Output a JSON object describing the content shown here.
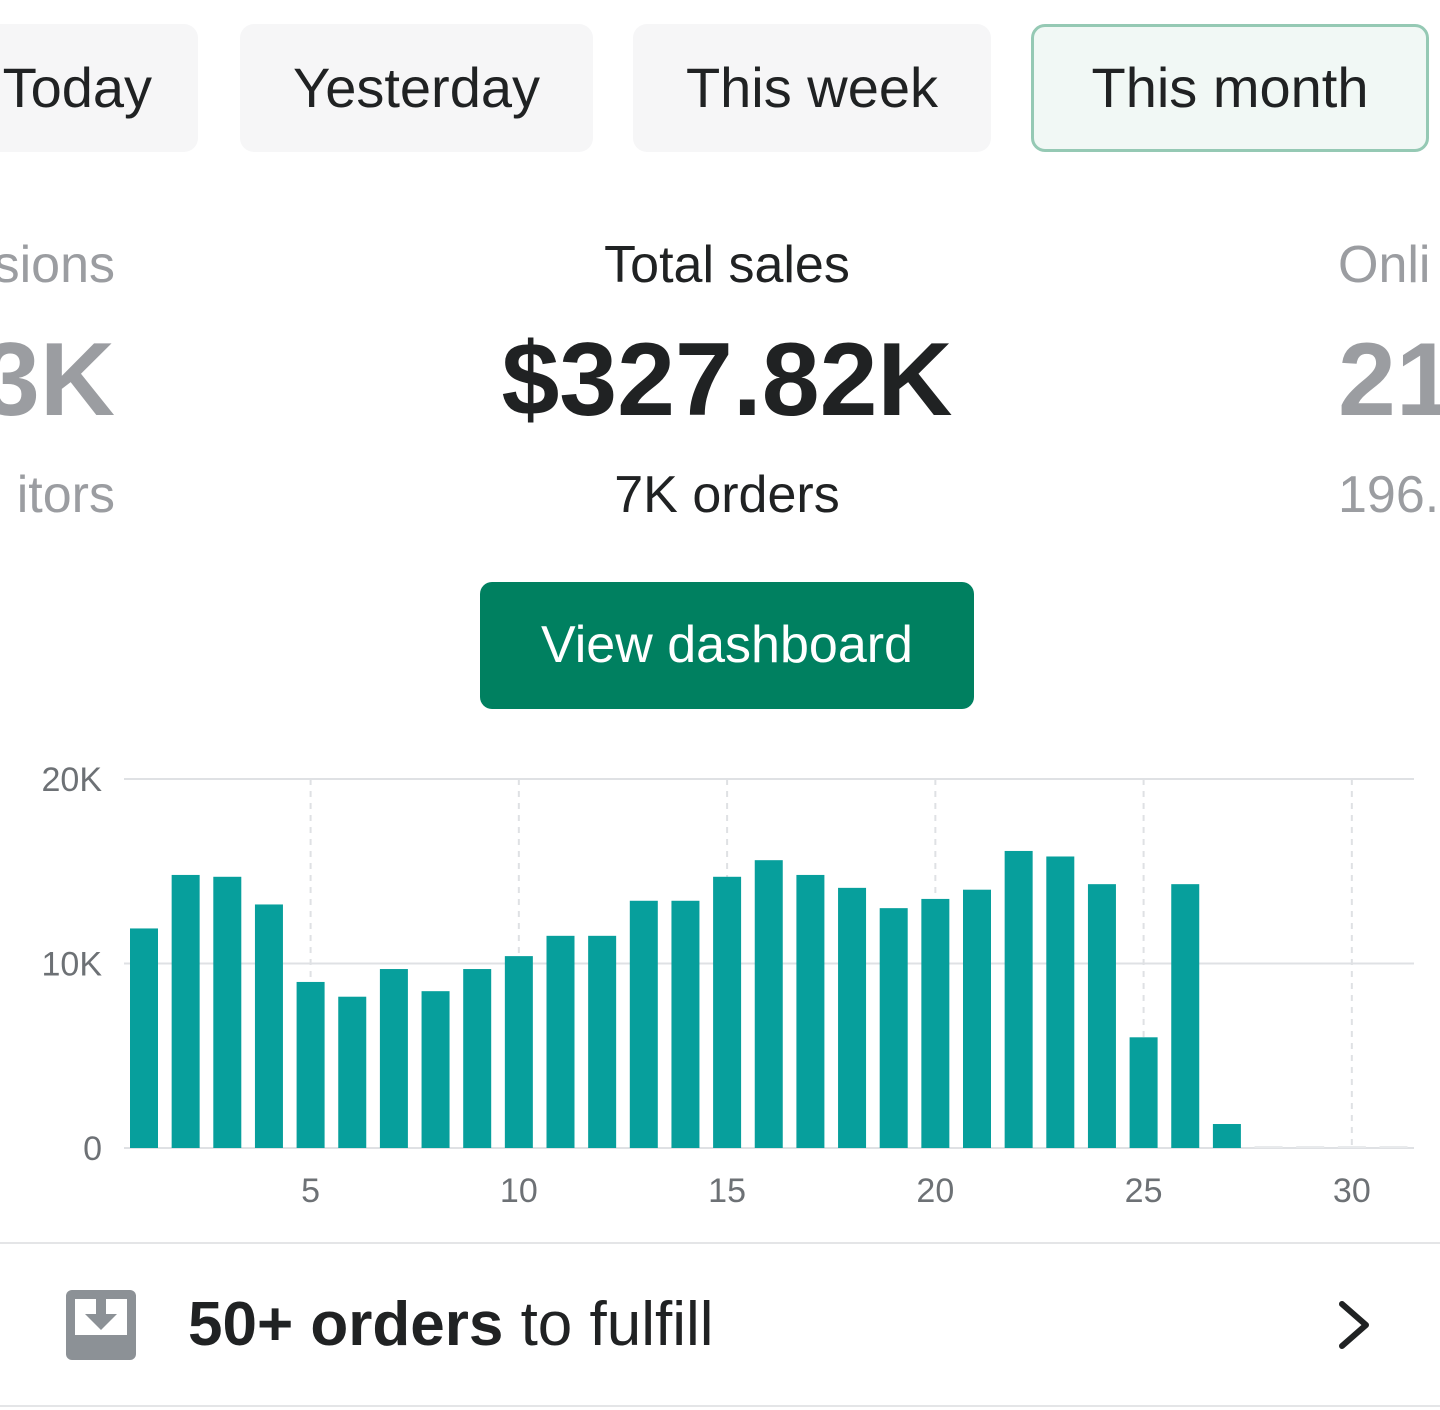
{
  "tabs": [
    {
      "label": "Today",
      "active": false
    },
    {
      "label": "Yesterday",
      "active": false
    },
    {
      "label": "This week",
      "active": false
    },
    {
      "label": "This month",
      "active": true
    }
  ],
  "metrics": {
    "sessions": {
      "label": "sions",
      "value": "3K",
      "sub": "itors"
    },
    "sales": {
      "label": "Total sales",
      "value": "$327.82K",
      "sub": "7K orders"
    },
    "online": {
      "label": "Onli",
      "value": "21",
      "sub": "196."
    }
  },
  "dashboard_button": "View dashboard",
  "fulfill": {
    "count": "50+ orders",
    "rest": " to fulfill",
    "icon": "download-tray-icon",
    "chevron": "chevron-right-icon"
  },
  "colors": {
    "bar": "#079f9c",
    "primary": "#008060",
    "grid": "#dfe1e4",
    "muted": "#9b9da1"
  },
  "chart_data": {
    "type": "bar",
    "x": [
      1,
      2,
      3,
      4,
      5,
      6,
      7,
      8,
      9,
      10,
      11,
      12,
      13,
      14,
      15,
      16,
      17,
      18,
      19,
      20,
      21,
      22,
      23,
      24,
      25,
      26,
      27,
      28,
      29,
      30,
      31
    ],
    "values": [
      11900,
      14800,
      14700,
      13200,
      9000,
      8200,
      9700,
      8500,
      9700,
      10400,
      11500,
      11500,
      13400,
      13400,
      14700,
      15600,
      14800,
      14100,
      13000,
      13500,
      14000,
      16100,
      15800,
      14300,
      6000,
      14300,
      1300,
      0,
      0,
      0,
      0
    ],
    "y_ticks": [
      "20K",
      "10K",
      "0"
    ],
    "y_tick_values": [
      20000,
      10000,
      0
    ],
    "x_ticks": [
      "5",
      "10",
      "15",
      "20",
      "25",
      "30"
    ],
    "x_tick_values": [
      5,
      10,
      15,
      20,
      25,
      30
    ],
    "ylim": [
      0,
      20000
    ],
    "grid": true
  }
}
